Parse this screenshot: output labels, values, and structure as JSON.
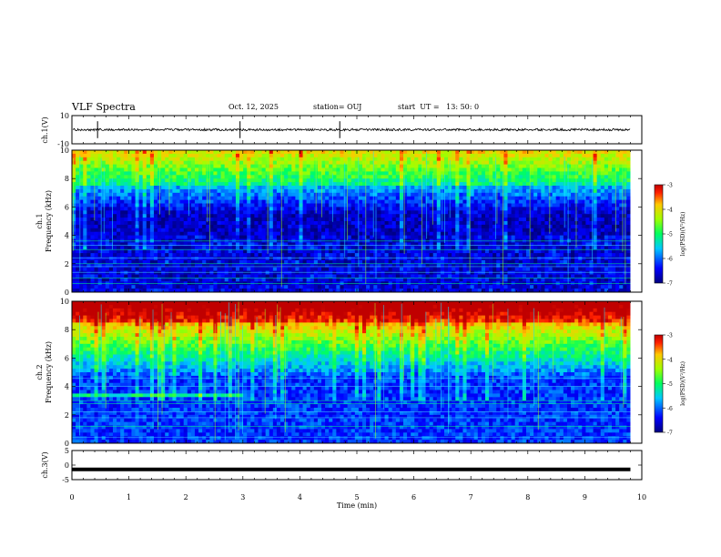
{
  "header": {
    "title": "VLF Spectra",
    "date": "Oct. 12, 2025",
    "station": "station= OUJ",
    "start": "start  UT =   13: 50: 0"
  },
  "chart_data": [
    {
      "type": "line",
      "panel": "ch.1 waveform",
      "ylabel": "ch.1(V)",
      "ylim": [
        -10,
        10
      ],
      "yticks": [
        "10",
        "-10"
      ],
      "baseline": 0,
      "xlim": [
        0,
        10
      ]
    },
    {
      "type": "heatmap",
      "panel": "ch.1 spectrogram",
      "ylabel": "ch.1\nFrequency (kHz)",
      "ylim": [
        0,
        10
      ],
      "yticks": [
        "0",
        "2",
        "4",
        "6",
        "8",
        "10"
      ],
      "xlim": [
        0,
        9.8
      ],
      "colorbar": {
        "label": "log(PSD)(V²/Hz)",
        "range": [
          -7,
          -3
        ],
        "ticks": [
          "-3",
          "-4",
          "-5",
          "-6",
          "-7"
        ]
      }
    },
    {
      "type": "heatmap",
      "panel": "ch.2 spectrogram",
      "ylabel": "ch.2\nFrequency (kHz)",
      "ylim": [
        0,
        10
      ],
      "yticks": [
        "0",
        "2",
        "4",
        "6",
        "8",
        "10"
      ],
      "xlim": [
        0,
        9.8
      ],
      "band_until_min": 2.95,
      "colorbar": {
        "label": "log(PSD)(V²/Hz)",
        "range": [
          -7,
          -3
        ],
        "ticks": [
          "-3",
          "-4",
          "-5",
          "-6",
          "-7"
        ]
      }
    },
    {
      "type": "line",
      "panel": "ch.3 waveform",
      "ylabel": "ch.3(V)",
      "ylim": [
        -5,
        5
      ],
      "yticks": [
        "5",
        "0",
        "-5"
      ],
      "level": -1.5,
      "xlim": [
        0,
        10
      ]
    }
  ],
  "xaxis": {
    "label": "Time  (min)",
    "ticks": [
      "0",
      "1",
      "2",
      "3",
      "4",
      "5",
      "6",
      "7",
      "8",
      "9",
      "10"
    ]
  },
  "colors": {
    "low": "#00007f",
    "high": "#ff0000"
  }
}
